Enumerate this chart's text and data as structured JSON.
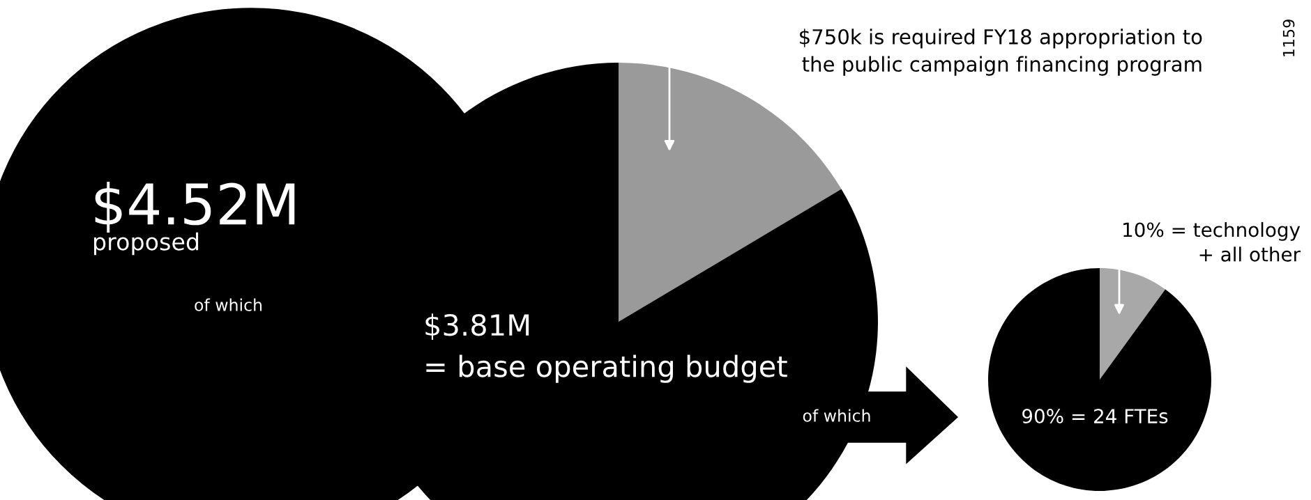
{
  "chart_data": [
    {
      "type": "other",
      "color": "#000000",
      "annotations": [
        "$4.52M",
        "proposed",
        "of which",
        "1159"
      ]
    },
    {
      "type": "pie",
      "categories": [
        "$750k is required FY18 appropriation to\nthe public campaign financing program",
        "$3.81M\n= base operating budget"
      ],
      "values": [
        0.75,
        3.81
      ],
      "colors": [
        "#9a9a9a",
        "#000000"
      ],
      "annotations": [
        "of which"
      ]
    },
    {
      "type": "pie",
      "categories": [
        "10% = technology\n+ all other",
        "90% = 24 FTEs"
      ],
      "values": [
        10,
        90
      ],
      "colors": [
        "#a8a8a8",
        "#000000"
      ]
    }
  ]
}
